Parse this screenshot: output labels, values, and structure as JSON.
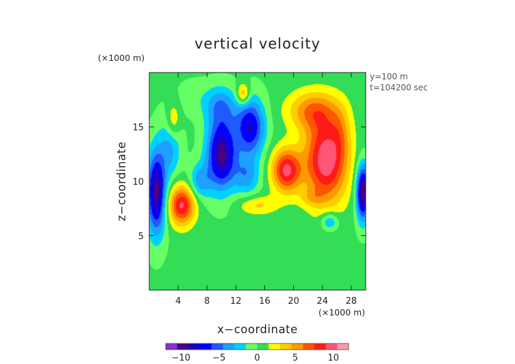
{
  "chart_data": {
    "type": "heatmap",
    "title": "vertical velocity",
    "xlabel": "x−coordinate",
    "ylabel": "z−coordinate",
    "x_unit": "(×1000 m)",
    "y_unit": "(×1000 m)",
    "annotation_lines": [
      "y=100 m",
      "t=104200 sec"
    ],
    "xlim": [
      0,
      30
    ],
    "ylim": [
      0,
      20
    ],
    "x_ticks": [
      4,
      8,
      12,
      16,
      20,
      24,
      28
    ],
    "x_tick_labels": [
      "4",
      "8",
      "12",
      "16",
      "20",
      "24",
      "28"
    ],
    "y_ticks": [
      5,
      10,
      15
    ],
    "y_tick_labels": [
      "5",
      "10",
      "15"
    ],
    "colorbar": {
      "range": [
        -12,
        12
      ],
      "ticks": [
        -10,
        -5,
        0,
        5,
        10
      ],
      "tick_labels": [
        "−10",
        "−5",
        "0",
        "5",
        "10"
      ],
      "colors": [
        "#8a2be2",
        "#4b0082",
        "#1a00c8",
        "#0000ff",
        "#1e5aff",
        "#1ea0ff",
        "#00d2ff",
        "#66ff66",
        "#33dd55",
        "#ffff00",
        "#ffcc00",
        "#ff9900",
        "#ff5500",
        "#ff1a1a",
        "#ff5577",
        "#ff99aa"
      ]
    },
    "background_value": 0.3,
    "features": [
      {
        "x": 1.0,
        "z": 9.0,
        "sx": 1.3,
        "sz": 3.8,
        "amp": -10
      },
      {
        "x": 3.0,
        "z": 13.5,
        "sx": 1.4,
        "sz": 3.0,
        "amp": -4
      },
      {
        "x": 4.5,
        "z": 7.8,
        "sx": 1.8,
        "sz": 1.8,
        "amp": 9
      },
      {
        "x": 3.3,
        "z": 15.5,
        "sx": 1.0,
        "sz": 1.8,
        "amp": 4
      },
      {
        "x": 7.0,
        "z": 10.0,
        "sx": 1.5,
        "sz": 1.6,
        "amp": -4
      },
      {
        "x": 10.0,
        "z": 12.5,
        "sx": 2.0,
        "sz": 3.2,
        "amp": -10
      },
      {
        "x": 9.8,
        "z": 17.0,
        "sx": 2.3,
        "sz": 1.8,
        "amp": -4
      },
      {
        "x": 14.0,
        "z": 15.0,
        "sx": 2.0,
        "sz": 2.6,
        "amp": -8
      },
      {
        "x": 13.5,
        "z": 10.5,
        "sx": 1.8,
        "sz": 1.8,
        "amp": -4
      },
      {
        "x": 13.0,
        "z": 18.0,
        "sx": 0.9,
        "sz": 1.0,
        "amp": 5
      },
      {
        "x": 15.0,
        "z": 7.8,
        "sx": 2.8,
        "sz": 0.9,
        "amp": 3
      },
      {
        "x": 19.0,
        "z": 11.0,
        "sx": 2.0,
        "sz": 2.0,
        "amp": 9
      },
      {
        "x": 24.5,
        "z": 12.0,
        "sx": 3.0,
        "sz": 4.0,
        "amp": 10
      },
      {
        "x": 22.5,
        "z": 16.5,
        "sx": 3.5,
        "sz": 1.8,
        "amp": 5
      },
      {
        "x": 26.5,
        "z": 14.5,
        "sx": 1.3,
        "sz": 2.5,
        "amp": 2
      },
      {
        "x": 29.6,
        "z": 9.0,
        "sx": 0.9,
        "sz": 2.5,
        "amp": -11
      },
      {
        "x": 22.5,
        "z": 8.5,
        "sx": 1.6,
        "sz": 0.8,
        "amp": 2
      },
      {
        "x": 25.0,
        "z": 6.3,
        "sx": 1.2,
        "sz": 0.8,
        "amp": -4
      },
      {
        "x": 6.0,
        "z": 17.8,
        "sx": 2.0,
        "sz": 1.5,
        "amp": -1
      }
    ]
  }
}
